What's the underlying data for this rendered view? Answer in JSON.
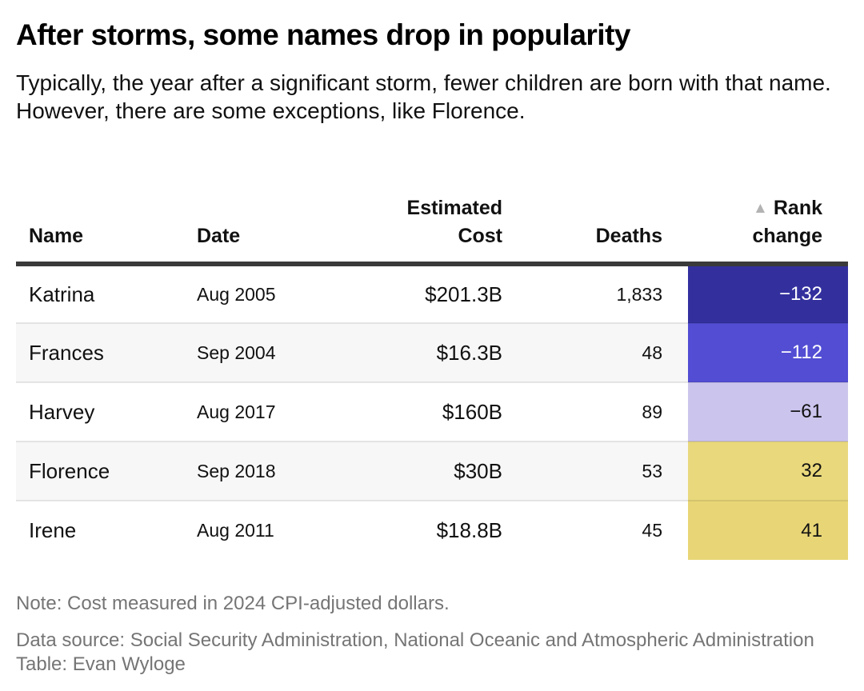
{
  "chart_data": {
    "type": "table",
    "title": "After storms, some names drop in popularity",
    "subtitle": "Typically, the year after a significant storm, fewer children are born with that name. However, there are some exceptions, like Florence.",
    "columns": [
      {
        "label": "Name",
        "align": "left"
      },
      {
        "label": "Date",
        "align": "left"
      },
      {
        "label": "Estimated\nCost",
        "align": "right"
      },
      {
        "label": "Deaths",
        "align": "right"
      },
      {
        "label": "Rank\nchange",
        "align": "right",
        "sort_indicator": "▲",
        "sort_indicator_color": "#b3b3b3"
      }
    ],
    "rows": [
      {
        "name": "Katrina",
        "date": "Aug 2005",
        "cost": "$201.3B",
        "cost_billions": 201.3,
        "deaths": "1,833",
        "deaths_value": 1833,
        "rank_change": "−132",
        "rank_change_value": -132,
        "rank_bg": "#33309e",
        "rank_fg": "#ffffff"
      },
      {
        "name": "Frances",
        "date": "Sep 2004",
        "cost": "$16.3B",
        "cost_billions": 16.3,
        "deaths": "48",
        "deaths_value": 48,
        "rank_change": "−112",
        "rank_change_value": -112,
        "rank_bg": "#524dd3",
        "rank_fg": "#ffffff"
      },
      {
        "name": "Harvey",
        "date": "Aug 2017",
        "cost": "$160B",
        "cost_billions": 160,
        "deaths": "89",
        "deaths_value": 89,
        "rank_change": "−61",
        "rank_change_value": -61,
        "rank_bg": "#cbc5ee",
        "rank_fg": "#111111"
      },
      {
        "name": "Florence",
        "date": "Sep 2018",
        "cost": "$30B",
        "cost_billions": 30,
        "deaths": "53",
        "deaths_value": 53,
        "rank_change": "32",
        "rank_change_value": 32,
        "rank_bg": "#e9d87c",
        "rank_fg": "#111111"
      },
      {
        "name": "Irene",
        "date": "Aug 2011",
        "cost": "$18.8B",
        "cost_billions": 18.8,
        "deaths": "45",
        "deaths_value": 45,
        "rank_change": "41",
        "rank_change_value": 41,
        "rank_bg": "#e8d676",
        "rank_fg": "#111111"
      }
    ],
    "note": "Note: Cost measured in 2024 CPI-adjusted dollars.",
    "data_source": "Data source: Social Security Administration, National Oceanic and Atmospheric Administration",
    "credit": "Table: Evan Wyloge"
  }
}
